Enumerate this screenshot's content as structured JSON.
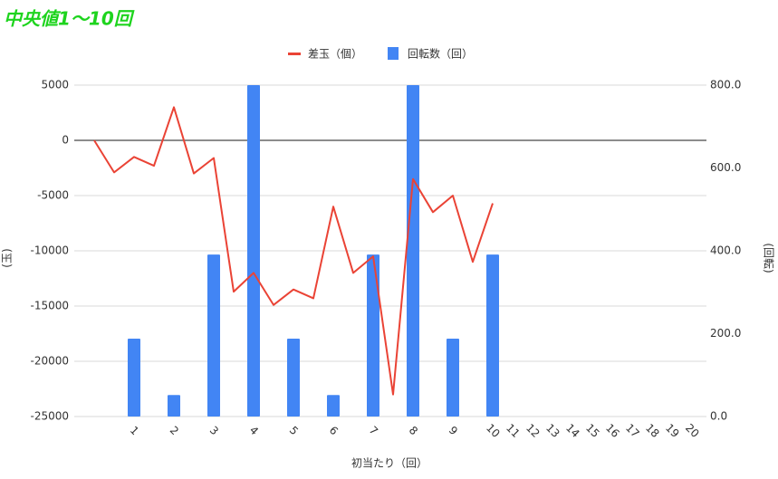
{
  "chart_data": {
    "type": "combo",
    "title": "中央値1〜10回",
    "x_label": "初当たり（回）",
    "y_label": "(玉)",
    "y2_label": "(回転)",
    "categories": [
      null,
      null,
      "1",
      null,
      "2",
      null,
      "3",
      null,
      "4",
      null,
      "5",
      null,
      "6",
      null,
      "7",
      null,
      "8",
      null,
      "9",
      null,
      "10",
      "11",
      "12",
      "13",
      "14",
      "15",
      "16",
      "17",
      "18",
      "19",
      "20"
    ],
    "ylim": [
      -25000,
      5000
    ],
    "yticks": [
      -25000,
      -20000,
      -15000,
      -10000,
      -5000,
      0,
      5000
    ],
    "y2lim": [
      0,
      800
    ],
    "y2ticks": [
      {
        "value": 0,
        "label": "0.0"
      },
      {
        "value": 200,
        "label": "200.0"
      },
      {
        "value": 400,
        "label": "400.0"
      },
      {
        "value": 600,
        "label": "600.0"
      },
      {
        "value": 800,
        "label": "800.0"
      }
    ],
    "grid": true,
    "legend": "top",
    "series": [
      {
        "name": "差玉（個）",
        "type": "line",
        "color": "#ea4335",
        "values": [
          0,
          -2900,
          -1500,
          -2300,
          3000,
          -3000,
          -1600,
          -13700,
          -12000,
          -14900,
          -13500,
          -14300,
          -6000,
          -12000,
          -10500,
          -23000,
          -3500,
          -6500,
          -5000,
          -11000,
          -5700,
          null,
          null,
          null,
          null,
          null,
          null,
          null,
          null,
          null,
          null
        ]
      },
      {
        "name": "回転数（回）",
        "type": "bar",
        "color": "#4285f4",
        "axis": "y2",
        "values": [
          null,
          null,
          188,
          null,
          52,
          null,
          391,
          null,
          800,
          null,
          188,
          null,
          52,
          null,
          391,
          null,
          800,
          null,
          188,
          null,
          391,
          null,
          null,
          null,
          null,
          null,
          null,
          null,
          null,
          null,
          null
        ]
      }
    ]
  }
}
